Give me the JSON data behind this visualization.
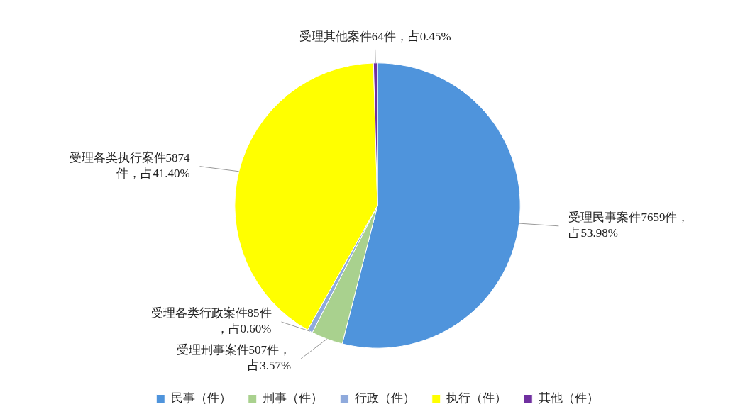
{
  "chart_data": {
    "type": "pie",
    "categories": [
      "民事（件）",
      "刑事（件）",
      "行政（件）",
      "执行（件）",
      "其他（件）"
    ],
    "values": [
      7659,
      507,
      85,
      5874,
      64
    ],
    "colors": [
      "#4f94dc",
      "#a9d18e",
      "#8faadc",
      "#ffff00",
      "#7030a0"
    ],
    "value_labels": [
      "受理民事案件7659件，占53.98%",
      "受理刑事案件507件，占3.57%",
      "受理各类行政案件85件，占0.60%",
      "受理各类执行案件5874件，占41.40%",
      "受理其他案件64件，占0.45%"
    ],
    "legend": "bottom"
  }
}
